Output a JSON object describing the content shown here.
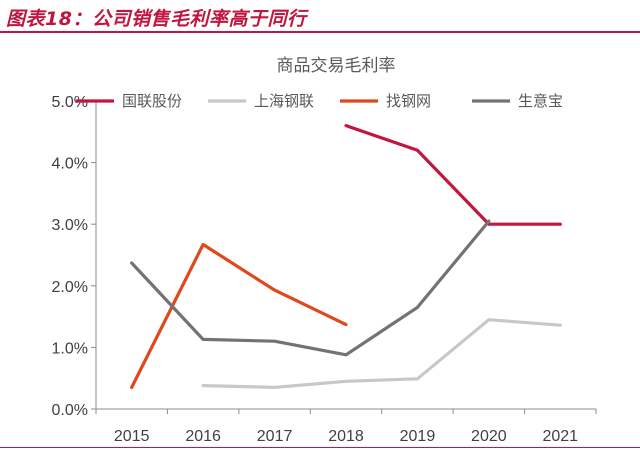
{
  "figure_title": "图表18：公司销售毛利率高于同行",
  "colors": {
    "accent": "#c0163f"
  },
  "chart_data": {
    "type": "line",
    "title": "商品交易毛利率",
    "xlabel": "",
    "ylabel": "",
    "categories": [
      "2015",
      "2016",
      "2017",
      "2018",
      "2019",
      "2020",
      "2021"
    ],
    "ylim": [
      0,
      5
    ],
    "yticks": [
      "0.0%",
      "1.0%",
      "2.0%",
      "3.0%",
      "4.0%",
      "5.0%"
    ],
    "grid": false,
    "legend_position": "top",
    "series": [
      {
        "name": "国联股份",
        "color": "#c0163f",
        "values": [
          null,
          null,
          null,
          4.6,
          4.2,
          3.0,
          3.0
        ]
      },
      {
        "name": "上海钢联",
        "color": "#c8c8c8",
        "values": [
          null,
          0.38,
          0.35,
          0.45,
          0.49,
          1.45,
          1.36
        ]
      },
      {
        "name": "找钢网",
        "color": "#e0471d",
        "values": [
          0.35,
          2.67,
          1.93,
          1.37,
          null,
          null,
          null
        ]
      },
      {
        "name": "生意宝",
        "color": "#737373",
        "values": [
          2.37,
          1.13,
          1.1,
          0.88,
          1.65,
          3.05,
          null
        ]
      }
    ]
  }
}
